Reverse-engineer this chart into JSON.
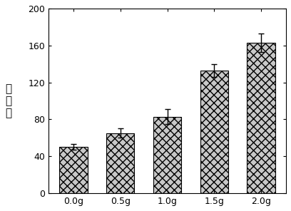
{
  "categories": [
    "0.0g",
    "0.5g",
    "1.0g",
    "1.5g",
    "2.0g"
  ],
  "values": [
    50,
    65,
    83,
    133,
    163
  ],
  "errors": [
    3,
    5,
    8,
    7,
    10
  ],
  "bar_color": "#c8c8c8",
  "hatch": "xxx",
  "ylabel": "伸长率",
  "ylim": [
    0,
    200
  ],
  "yticks": [
    0,
    40,
    80,
    120,
    160,
    200
  ],
  "bar_width": 0.6,
  "figsize": [
    4.08,
    2.96
  ],
  "dpi": 100,
  "ecolor": "black",
  "capsize": 3,
  "edge_color": "black",
  "linewidth": 0.8,
  "tick_fontsize": 9,
  "ylabel_fontsize": 11
}
